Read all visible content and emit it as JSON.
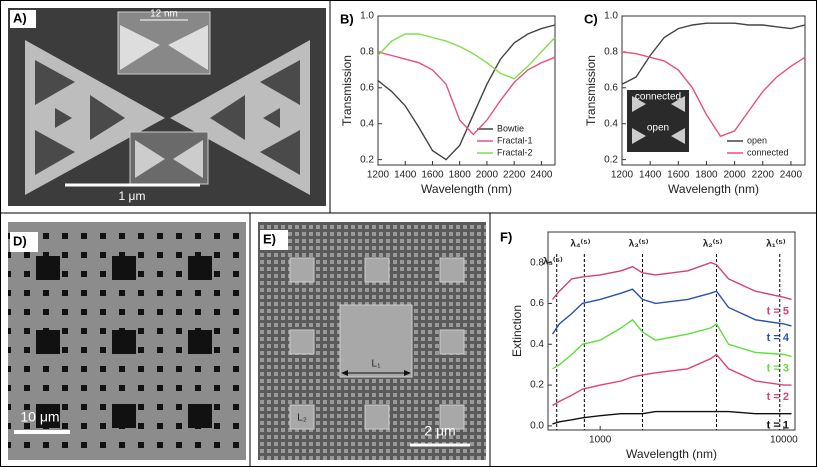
{
  "panels": {
    "a": {
      "label": "A)",
      "inset_scale": "12 nm",
      "scale_bar": "1 μm"
    },
    "c_inset": {
      "top": "connected",
      "bottom": "open"
    },
    "d": {
      "label": "D)",
      "scale_bar": "10 μm"
    },
    "e": {
      "label": "E)",
      "scale_bar": "2 μm",
      "big_side": "L₁",
      "small_side": "L₂"
    }
  },
  "chart_data": [
    {
      "type": "line",
      "panel_label": "B)",
      "xlabel": "Wavelength (nm)",
      "ylabel": "Transmission",
      "x": [
        1200,
        1300,
        1400,
        1500,
        1600,
        1700,
        1800,
        1900,
        2000,
        2100,
        2200,
        2300,
        2400,
        2500
      ],
      "xlim": [
        1200,
        2500
      ],
      "xticks": [
        1200,
        1400,
        1600,
        1800,
        2000,
        2200,
        2400
      ],
      "ylim": [
        0.17,
        1.0
      ],
      "yticks": [
        0.2,
        0.4,
        0.6,
        0.8,
        {
          "value": 1,
          "label": "1.0"
        }
      ],
      "legend": "lower-right",
      "series": [
        {
          "name": "Bowtie",
          "color": "#444444",
          "values": [
            0.64,
            0.58,
            0.5,
            0.38,
            0.25,
            0.2,
            0.28,
            0.45,
            0.62,
            0.76,
            0.85,
            0.9,
            0.93,
            0.95
          ]
        },
        {
          "name": "Fractal-1",
          "color": "#e8507a",
          "values": [
            0.8,
            0.78,
            0.76,
            0.74,
            0.7,
            0.62,
            0.42,
            0.34,
            0.42,
            0.53,
            0.63,
            0.7,
            0.74,
            0.77
          ]
        },
        {
          "name": "Fractal-2",
          "color": "#7ee04a",
          "values": [
            0.78,
            0.86,
            0.9,
            0.9,
            0.88,
            0.86,
            0.83,
            0.79,
            0.74,
            0.68,
            0.65,
            0.72,
            0.8,
            0.88
          ]
        }
      ]
    },
    {
      "type": "line",
      "panel_label": "C)",
      "xlabel": "Wavelength (nm)",
      "ylabel": "Transmission",
      "x": [
        1200,
        1300,
        1400,
        1500,
        1600,
        1700,
        1800,
        1900,
        2000,
        2100,
        2200,
        2300,
        2400,
        2500
      ],
      "xlim": [
        1200,
        2500
      ],
      "xticks": [
        1200,
        1400,
        1600,
        1800,
        2000,
        2200,
        2400
      ],
      "ylim": [
        0.17,
        1.0
      ],
      "yticks": [
        0.2,
        0.4,
        0.6,
        0.8,
        {
          "value": 1,
          "label": "1.0"
        }
      ],
      "legend": "lower-right",
      "series": [
        {
          "name": "open",
          "color": "#444444",
          "values": [
            0.62,
            0.66,
            0.78,
            0.88,
            0.93,
            0.95,
            0.96,
            0.96,
            0.96,
            0.95,
            0.95,
            0.94,
            0.93,
            0.95
          ]
        },
        {
          "name": "connected",
          "color": "#e8507a",
          "values": [
            0.8,
            0.79,
            0.77,
            0.75,
            0.7,
            0.6,
            0.45,
            0.33,
            0.36,
            0.47,
            0.58,
            0.66,
            0.72,
            0.77
          ]
        }
      ]
    },
    {
      "type": "line",
      "panel_label": "F)",
      "xlabel": "Wavelength (nm)",
      "ylabel": "Extinction",
      "xscale": "log",
      "x": [
        550,
        600,
        700,
        800,
        1000,
        1300,
        1500,
        1700,
        2000,
        3000,
        4000,
        4300,
        5000,
        7000,
        10000,
        11000
      ],
      "xlim": [
        520,
        11500
      ],
      "xticks": [
        1000,
        10000
      ],
      "ylim": [
        -0.02,
        0.95
      ],
      "yticks": [
        {
          "value": 0,
          "label": "0.0"
        },
        0.2,
        0.4,
        0.6,
        0.8
      ],
      "legend": "inline-right",
      "annotations": [
        {
          "text": "λ₅⁽⁵⁾",
          "x": 580
        },
        {
          "text": "λ₄⁽⁵⁾",
          "x": 820
        },
        {
          "text": "λ₃⁽⁵⁾",
          "x": 1700
        },
        {
          "text": "λ₂⁽⁵⁾",
          "x": 4300
        },
        {
          "text": "λ₁⁽⁵⁾",
          "x": 9500
        }
      ],
      "series": [
        {
          "name": "t = 1",
          "color": "#111111",
          "values": [
            0.01,
            0.02,
            0.03,
            0.04,
            0.05,
            0.06,
            0.06,
            0.06,
            0.07,
            0.07,
            0.07,
            0.07,
            0.07,
            0.06,
            0.06,
            0.06
          ]
        },
        {
          "name": "t = 2",
          "color": "#e0407a",
          "values": [
            0.1,
            0.12,
            0.15,
            0.18,
            0.2,
            0.22,
            0.24,
            0.25,
            0.26,
            0.28,
            0.33,
            0.35,
            0.28,
            0.22,
            0.2,
            0.2
          ]
        },
        {
          "name": "t = 3",
          "color": "#5ee03a",
          "values": [
            0.28,
            0.3,
            0.35,
            0.4,
            0.42,
            0.48,
            0.52,
            0.46,
            0.42,
            0.45,
            0.48,
            0.5,
            0.4,
            0.36,
            0.35,
            0.34
          ]
        },
        {
          "name": "t = 4",
          "color": "#2a50b0",
          "values": [
            0.45,
            0.5,
            0.55,
            0.6,
            0.62,
            0.65,
            0.67,
            0.62,
            0.6,
            0.62,
            0.65,
            0.66,
            0.58,
            0.52,
            0.5,
            0.49
          ]
        },
        {
          "name": "t = 5",
          "color": "#d0407e",
          "values": [
            0.62,
            0.66,
            0.72,
            0.73,
            0.74,
            0.76,
            0.78,
            0.75,
            0.74,
            0.76,
            0.8,
            0.79,
            0.72,
            0.66,
            0.63,
            0.62
          ]
        }
      ]
    }
  ]
}
